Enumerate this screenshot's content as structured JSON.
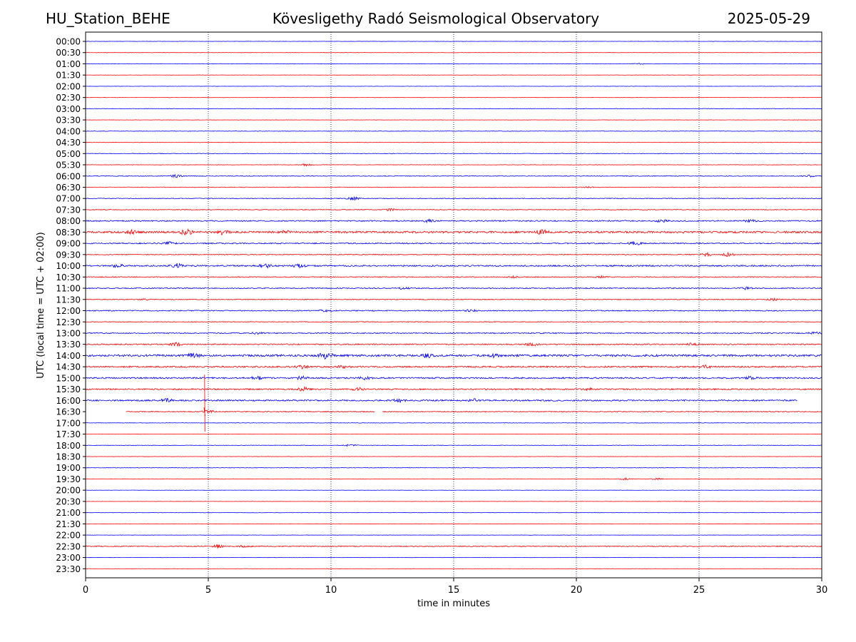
{
  "header": {
    "station": "HU_Station_BEHE",
    "title": "Kövesligethy Radó Seismological Observatory",
    "date": "2025-05-29"
  },
  "chart_data": {
    "type": "line",
    "xlabel": "time in minutes",
    "ylabel": "UTC (local time = UTC + 02:00)",
    "xlim": [
      0,
      30
    ],
    "xticks": [
      "0",
      "5",
      "10",
      "15",
      "20",
      "25",
      "30"
    ],
    "vertical_grid_minutes": [
      5,
      10,
      15,
      20,
      25
    ],
    "grid": "vertical dotted lines at 5-minute intervals",
    "colors": {
      "even_rows": "#0000ff",
      "odd_rows": "#ff0000"
    },
    "rows": [
      {
        "label": "00:00",
        "amp": 0.2,
        "bursts": []
      },
      {
        "label": "00:30",
        "amp": 0.2,
        "bursts": []
      },
      {
        "label": "01:00",
        "amp": 0.3,
        "bursts": [
          [
            22.5,
            0.8
          ]
        ]
      },
      {
        "label": "01:30",
        "amp": 0.2,
        "bursts": []
      },
      {
        "label": "02:00",
        "amp": 0.2,
        "bursts": []
      },
      {
        "label": "02:30",
        "amp": 0.2,
        "bursts": []
      },
      {
        "label": "03:00",
        "amp": 0.3,
        "bursts": []
      },
      {
        "label": "03:30",
        "amp": 0.2,
        "bursts": []
      },
      {
        "label": "04:00",
        "amp": 0.3,
        "bursts": []
      },
      {
        "label": "04:30",
        "amp": 0.3,
        "bursts": []
      },
      {
        "label": "05:00",
        "amp": 0.4,
        "bursts": []
      },
      {
        "label": "05:30",
        "amp": 0.3,
        "bursts": [
          [
            9.0,
            1.5
          ]
        ]
      },
      {
        "label": "06:00",
        "amp": 0.5,
        "bursts": [
          [
            3.7,
            2
          ],
          [
            29.5,
            1.2
          ]
        ]
      },
      {
        "label": "06:30",
        "amp": 0.4,
        "bursts": [
          [
            20.5,
            1
          ]
        ]
      },
      {
        "label": "07:00",
        "amp": 0.5,
        "bursts": [
          [
            10.9,
            2.5
          ]
        ]
      },
      {
        "label": "07:30",
        "amp": 0.5,
        "bursts": [
          [
            12.4,
            1.5
          ]
        ]
      },
      {
        "label": "08:00",
        "amp": 0.8,
        "bursts": [
          [
            14.0,
            2
          ],
          [
            23.5,
            2
          ],
          [
            27.1,
            2
          ]
        ]
      },
      {
        "label": "08:30",
        "amp": 1.3,
        "bursts": [
          [
            4.1,
            4
          ],
          [
            5.6,
            3
          ],
          [
            1.9,
            2.5
          ],
          [
            8.2,
            2
          ],
          [
            18.6,
            3
          ]
        ]
      },
      {
        "label": "09:00",
        "amp": 0.8,
        "bursts": [
          [
            3.4,
            2
          ],
          [
            22.4,
            2.5
          ]
        ]
      },
      {
        "label": "09:30",
        "amp": 0.6,
        "bursts": [
          [
            25.3,
            2.5
          ],
          [
            26.2,
            2.5
          ]
        ]
      },
      {
        "label": "10:00",
        "amp": 1.0,
        "bursts": [
          [
            3.7,
            3
          ],
          [
            7.3,
            3
          ],
          [
            8.7,
            2.5
          ],
          [
            1.3,
            2
          ]
        ]
      },
      {
        "label": "10:30",
        "amp": 0.6,
        "bursts": [
          [
            21.0,
            1.5
          ],
          [
            17.4,
            1.2
          ]
        ]
      },
      {
        "label": "11:00",
        "amp": 0.7,
        "bursts": [
          [
            12.9,
            1.5
          ],
          [
            26.9,
            1.5
          ]
        ]
      },
      {
        "label": "11:30",
        "amp": 0.6,
        "bursts": [
          [
            2.4,
            1.2
          ],
          [
            28.0,
            1.5
          ]
        ]
      },
      {
        "label": "12:00",
        "amp": 0.7,
        "bursts": [
          [
            9.8,
            1.5
          ],
          [
            15.7,
            1.5
          ]
        ]
      },
      {
        "label": "12:30",
        "amp": 0.5,
        "bursts": []
      },
      {
        "label": "13:00",
        "amp": 0.7,
        "bursts": [
          [
            7.0,
            1.5
          ],
          [
            29.7,
            1.5
          ]
        ]
      },
      {
        "label": "13:30",
        "amp": 0.8,
        "bursts": [
          [
            3.7,
            2.5
          ],
          [
            18.2,
            2
          ],
          [
            24.7,
            1.5
          ]
        ]
      },
      {
        "label": "14:00",
        "amp": 1.4,
        "bursts": [
          [
            9.8,
            5
          ],
          [
            4.4,
            2.5
          ],
          [
            13.9,
            2.5
          ],
          [
            16.6,
            2
          ]
        ]
      },
      {
        "label": "14:30",
        "amp": 1.0,
        "bursts": [
          [
            8.8,
            2.5
          ],
          [
            10.5,
            2
          ],
          [
            25.3,
            2
          ]
        ]
      },
      {
        "label": "15:00",
        "amp": 1.0,
        "bursts": [
          [
            7.0,
            2.5
          ],
          [
            8.8,
            2.5
          ],
          [
            11.4,
            2
          ],
          [
            27.1,
            2
          ]
        ]
      },
      {
        "label": "15:30",
        "amp": 0.9,
        "bursts": [
          [
            8.9,
            2.5
          ],
          [
            11.1,
            2
          ],
          [
            20.5,
            1.5
          ]
        ]
      },
      {
        "label": "16:00",
        "amp": 1.0,
        "bursts": [
          [
            3.3,
            2
          ],
          [
            12.8,
            2
          ],
          [
            15.8,
            2
          ]
        ],
        "end": 29.0
      },
      {
        "label": "16:30",
        "amp": 0.6,
        "bursts": [
          [
            5.0,
            2.5
          ]
        ],
        "start": 1.65,
        "gap": [
          11.8,
          12.1
        ],
        "spike": {
          "x": 4.85,
          "up": 52,
          "down": 28
        }
      },
      {
        "label": "17:00",
        "amp": 0.3,
        "bursts": []
      },
      {
        "label": "17:30",
        "amp": 0.2,
        "bursts": []
      },
      {
        "label": "18:00",
        "amp": 0.3,
        "bursts": [
          [
            10.8,
            1.8
          ]
        ]
      },
      {
        "label": "18:30",
        "amp": 0.2,
        "bursts": []
      },
      {
        "label": "19:00",
        "amp": 0.3,
        "bursts": []
      },
      {
        "label": "19:30",
        "amp": 0.3,
        "bursts": [
          [
            22.0,
            1.5
          ],
          [
            23.3,
            1.2
          ]
        ]
      },
      {
        "label": "20:00",
        "amp": 0.2,
        "bursts": []
      },
      {
        "label": "20:30",
        "amp": 0.2,
        "bursts": []
      },
      {
        "label": "21:00",
        "amp": 0.2,
        "bursts": []
      },
      {
        "label": "21:30",
        "amp": 0.2,
        "bursts": []
      },
      {
        "label": "22:00",
        "amp": 0.2,
        "bursts": []
      },
      {
        "label": "22:30",
        "amp": 0.6,
        "bursts": [
          [
            5.4,
            2.5
          ],
          [
            6.5,
            1.5
          ]
        ]
      },
      {
        "label": "23:00",
        "amp": 0.2,
        "bursts": []
      },
      {
        "label": "23:30",
        "amp": 0.2,
        "bursts": []
      }
    ]
  }
}
